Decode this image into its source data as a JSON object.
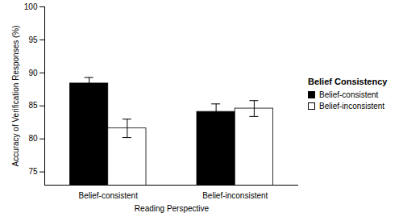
{
  "chart_data": {
    "type": "bar",
    "x_label": "Reading Perspective",
    "y_label": "Accuracy of Verification Responses (%)",
    "categories": [
      "Belief-consistent",
      "Belief-inconsistent"
    ],
    "series": [
      {
        "name": "Belief-consistent",
        "color": "#000000",
        "values": [
          88.4,
          84.1
        ],
        "errors": [
          0.9,
          1.2
        ]
      },
      {
        "name": "Belief-inconsistent",
        "color": "#ffffff",
        "values": [
          81.6,
          84.6
        ],
        "errors": [
          1.4,
          1.2
        ]
      }
    ],
    "ylim": [
      73,
      100
    ],
    "yticks": [
      75,
      80,
      85,
      90,
      95,
      100
    ],
    "legend": "right",
    "legend_title": "Belief Consistency",
    "grid": false
  }
}
